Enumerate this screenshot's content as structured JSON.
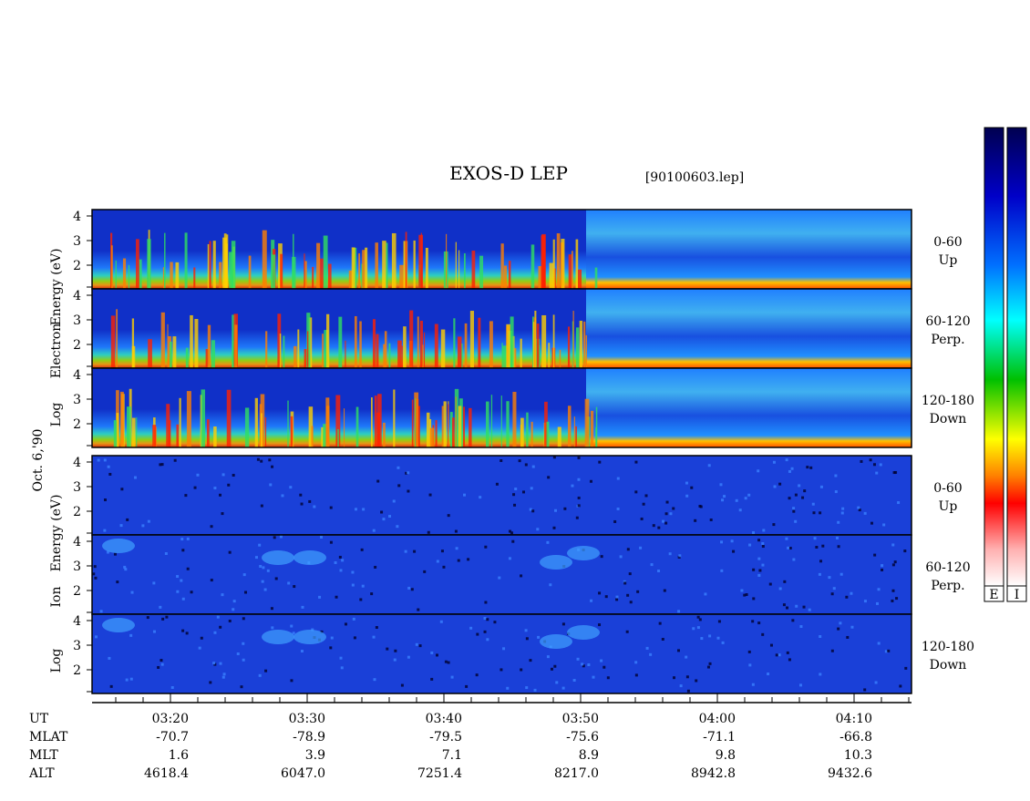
{
  "chart_data": {
    "type": "spectrogram",
    "title": "EXOS-D LEP",
    "subtitle": "[90100603.lep]",
    "date_label": "Oct. 6,'90",
    "groups": [
      {
        "name": "Electron",
        "ylabel": [
          "Log",
          "Electron",
          "Energy (eV)"
        ]
      },
      {
        "name": "Ion",
        "ylabel": [
          "Log",
          "Ion",
          "Energy (eV)"
        ]
      }
    ],
    "panels": [
      {
        "group": 0,
        "angle": "0-60",
        "direction": "Up"
      },
      {
        "group": 0,
        "angle": "60-120",
        "direction": "Perp."
      },
      {
        "group": 0,
        "angle": "120-180",
        "direction": "Down"
      },
      {
        "group": 1,
        "angle": "0-60",
        "direction": "Up"
      },
      {
        "group": 1,
        "angle": "60-120",
        "direction": "Perp."
      },
      {
        "group": 1,
        "angle": "120-180",
        "direction": "Down"
      }
    ],
    "yticks": [
      2,
      3,
      4
    ],
    "xticks": [
      "03:20",
      "03:30",
      "03:40",
      "03:50",
      "04:00",
      "04:10"
    ],
    "ephemeris": [
      {
        "name": "UT",
        "values": [
          "03:20",
          "03:30",
          "03:40",
          "03:50",
          "04:00",
          "04:10"
        ]
      },
      {
        "name": "MLAT",
        "values": [
          "-70.7",
          "-78.9",
          "-79.5",
          "-75.6",
          "-71.1",
          "-66.8"
        ]
      },
      {
        "name": "MLT",
        "values": [
          "1.6",
          "3.9",
          "7.1",
          "8.9",
          "9.8",
          "10.3"
        ]
      },
      {
        "name": "ALT",
        "values": [
          "4618.4",
          "6047.0",
          "7251.4",
          "8217.0",
          "8942.8",
          "9432.6"
        ]
      }
    ],
    "colorbars": [
      "E",
      "I"
    ]
  }
}
